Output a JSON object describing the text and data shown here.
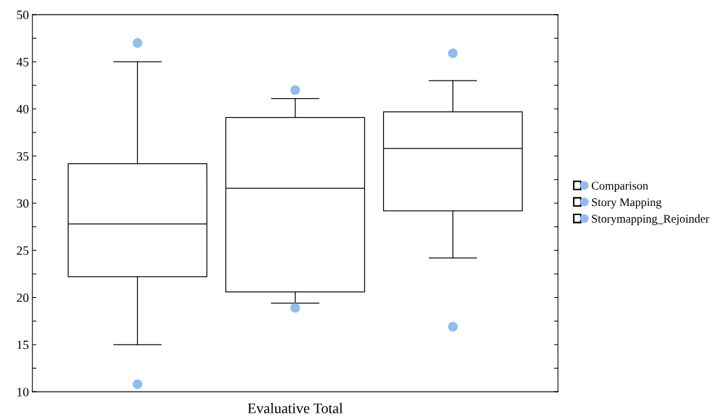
{
  "chart_data": {
    "type": "box",
    "xlabel": "Evaluative Total",
    "categories": [
      null
    ],
    "series": [
      {
        "name": "Comparison",
        "color": "#000000",
        "boxes": [
          {
            "low": 15.0,
            "q1": 22.2,
            "median": 27.8,
            "q3": 34.2,
            "high": 45.0,
            "outliers": [
              47.0,
              10.8
            ]
          }
        ]
      },
      {
        "name": "Story Mapping",
        "color": "#000000",
        "boxes": [
          {
            "low": 19.4,
            "q1": 20.6,
            "median": 31.6,
            "q3": 39.1,
            "high": 41.1,
            "outliers": [
              42.0,
              18.9
            ]
          }
        ]
      },
      {
        "name": "Storymapping_Rejoinder",
        "color": "#000000",
        "boxes": [
          {
            "low": 24.2,
            "q1": 29.2,
            "median": 35.8,
            "q3": 39.7,
            "high": 43.0,
            "outliers": [
              45.9,
              16.9
            ]
          }
        ]
      }
    ],
    "ylim": [
      10,
      50
    ],
    "yticks": [
      10,
      {
        "value": 12.5,
        "label": null
      },
      15,
      {
        "value": 17.5,
        "label": null
      },
      20,
      {
        "value": 22.5,
        "label": null
      },
      25,
      {
        "value": 27.5,
        "label": null
      },
      30,
      {
        "value": 32.5,
        "label": null
      },
      35,
      {
        "value": 37.5,
        "label": null
      },
      40,
      {
        "value": 42.5,
        "label": null
      },
      45,
      {
        "value": 47.5,
        "label": null
      },
      50
    ],
    "legend": "right",
    "grid": false
  }
}
